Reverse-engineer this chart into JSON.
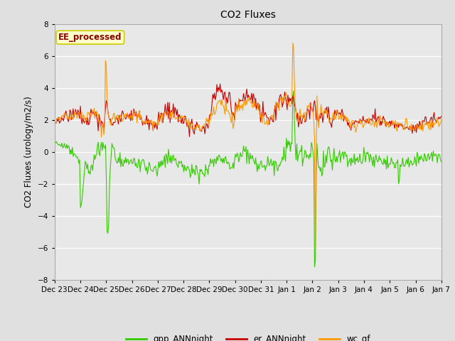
{
  "title": "CO2 Fluxes",
  "ylabel": "CO2 Fluxes (urology/m2/s)",
  "ylim": [
    -8,
    8
  ],
  "yticks": [
    -8,
    -6,
    -4,
    -2,
    0,
    2,
    4,
    6,
    8
  ],
  "annotation": "EE_processed",
  "fig_bg_color": "#e0e0e0",
  "plot_bg_color": "#e8e8e8",
  "line_colors": {
    "gpp": "#33cc00",
    "er": "#cc0000",
    "wc": "#ff9900"
  },
  "legend_labels": [
    "gpp_ANNnight",
    "er_ANNnight",
    "wc_gf"
  ],
  "n_points": 480,
  "date_labels": [
    "Dec 23",
    "Dec 24",
    "Dec 25",
    "Dec 26",
    "Dec 27",
    "Dec 28",
    "Dec 29",
    "Dec 30",
    "Dec 31",
    "Jan 1",
    "Jan 2",
    "Jan 3",
    "Jan 4",
    "Jan 5",
    "Jan 6",
    "Jan 7"
  ]
}
